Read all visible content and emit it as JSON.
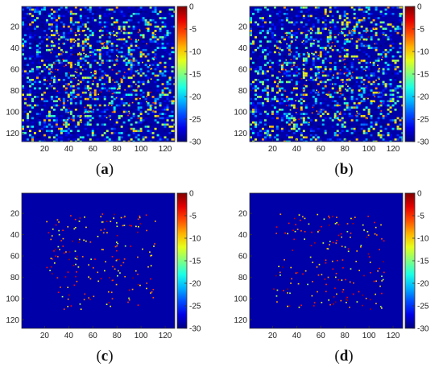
{
  "colors": {
    "background_field": "#0c1f8f",
    "axis": "#333333",
    "colormap": [
      "#00008f",
      "#0000ff",
      "#0080ff",
      "#00ffff",
      "#80ff80",
      "#ffff00",
      "#ff8000",
      "#ff0000",
      "#800000"
    ]
  },
  "chart_data": [
    {
      "panel": "a",
      "caption_open": "(",
      "caption_letter": "a",
      "caption_close": ")",
      "type": "heatmap",
      "xticks": [
        20,
        40,
        60,
        80,
        100,
        120
      ],
      "yticks": [
        20,
        40,
        60,
        80,
        100,
        120
      ],
      "xlim": [
        1,
        128
      ],
      "ylim": [
        1,
        128
      ],
      "colorbar_ticks": [
        0,
        -5,
        -10,
        -15,
        -20,
        -25,
        -30
      ],
      "clim": [
        -30,
        0
      ],
      "noise_background": true,
      "noise_seed": 11,
      "target_seed": 101
    },
    {
      "panel": "b",
      "caption_open": "(",
      "caption_letter": "b",
      "caption_close": ")",
      "type": "heatmap",
      "xticks": [
        20,
        40,
        60,
        80,
        100,
        120
      ],
      "yticks": [
        20,
        40,
        60,
        80,
        100,
        120
      ],
      "xlim": [
        1,
        128
      ],
      "ylim": [
        1,
        128
      ],
      "colorbar_ticks": [
        0,
        -5,
        -10,
        -15,
        -20,
        -25,
        -30
      ],
      "clim": [
        -30,
        0
      ],
      "noise_background": true,
      "noise_seed": 23,
      "target_seed": 101
    },
    {
      "panel": "c",
      "caption_open": "(",
      "caption_letter": "c",
      "caption_close": ")",
      "type": "heatmap",
      "xticks": [
        20,
        40,
        60,
        80,
        100,
        120
      ],
      "yticks": [
        20,
        40,
        60,
        80,
        100,
        120
      ],
      "xlim": [
        1,
        128
      ],
      "ylim": [
        1,
        128
      ],
      "colorbar_ticks": [
        0,
        -5,
        -10,
        -15,
        -20,
        -25,
        -30
      ],
      "clim": [
        -30,
        0
      ],
      "noise_background": false,
      "noise_seed": 0,
      "target_seed": 101
    },
    {
      "panel": "d",
      "caption_open": "(",
      "caption_letter": "d",
      "caption_close": ")",
      "type": "heatmap",
      "xticks": [
        20,
        40,
        60,
        80,
        100,
        120
      ],
      "yticks": [
        20,
        40,
        60,
        80,
        100,
        120
      ],
      "xlim": [
        1,
        128
      ],
      "ylim": [
        1,
        128
      ],
      "colorbar_ticks": [
        0,
        -5,
        -10,
        -15,
        -20,
        -25,
        -30
      ],
      "clim": [
        -30,
        0
      ],
      "noise_background": false,
      "noise_seed": 0,
      "target_seed": 202
    }
  ]
}
